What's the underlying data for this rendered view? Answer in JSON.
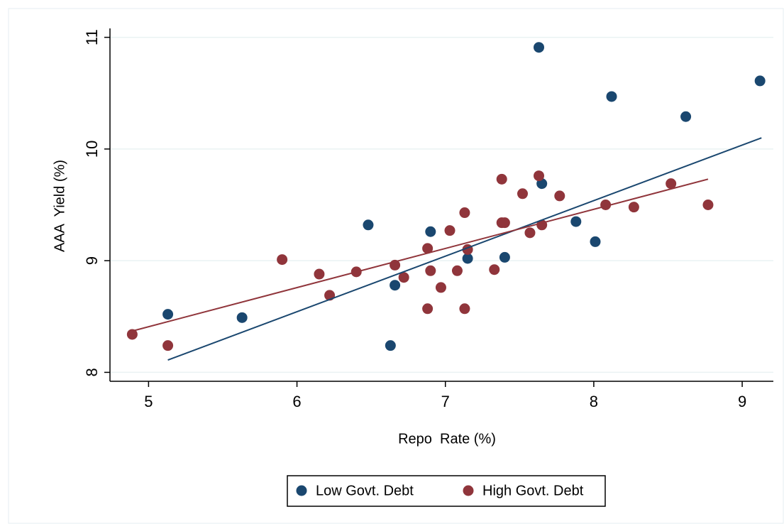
{
  "chart_data": {
    "type": "scatter",
    "x_label": "Repo  Rate (%)",
    "y_label": "AAA  Yield (%)",
    "xlim": [
      4.74,
      9.21
    ],
    "ylim": [
      7.92,
      11.08
    ],
    "xticks": [
      5,
      6,
      7,
      8,
      9
    ],
    "yticks": [
      8,
      9,
      10,
      11
    ],
    "grid": true,
    "legend": "bottom",
    "series": [
      {
        "name": "Low Govt. Debt",
        "color": "#1a476f",
        "x": [
          5.13,
          5.63,
          6.48,
          6.63,
          6.66,
          6.9,
          7.15,
          7.4,
          7.63,
          7.65,
          7.88,
          8.01,
          8.12,
          8.62,
          9.12
        ],
        "y": [
          8.52,
          8.49,
          9.32,
          8.24,
          8.78,
          9.26,
          9.02,
          9.03,
          10.91,
          9.69,
          9.35,
          9.17,
          10.47,
          10.29,
          10.61
        ],
        "fit_x": [
          5.13,
          9.13
        ],
        "fit_y": [
          8.11,
          10.1
        ]
      },
      {
        "name": "High Govt. Debt",
        "color": "#90353b",
        "x": [
          4.89,
          5.13,
          5.9,
          6.15,
          6.22,
          6.4,
          6.66,
          6.72,
          6.88,
          6.88,
          6.9,
          6.97,
          7.03,
          7.08,
          7.13,
          7.13,
          7.15,
          7.33,
          7.38,
          7.38,
          7.4,
          7.52,
          7.57,
          7.63,
          7.65,
          7.77,
          8.08,
          8.27,
          8.52,
          8.77
        ],
        "y": [
          8.34,
          8.24,
          9.01,
          8.88,
          8.69,
          8.9,
          8.96,
          8.85,
          9.11,
          8.57,
          8.91,
          8.76,
          9.27,
          8.91,
          9.43,
          8.57,
          9.1,
          8.92,
          9.73,
          9.34,
          9.34,
          9.6,
          9.25,
          9.76,
          9.32,
          9.58,
          9.5,
          9.48,
          9.69,
          9.5
        ],
        "fit_x": [
          4.89,
          8.77
        ],
        "fit_y": [
          8.37,
          9.73
        ]
      }
    ]
  }
}
